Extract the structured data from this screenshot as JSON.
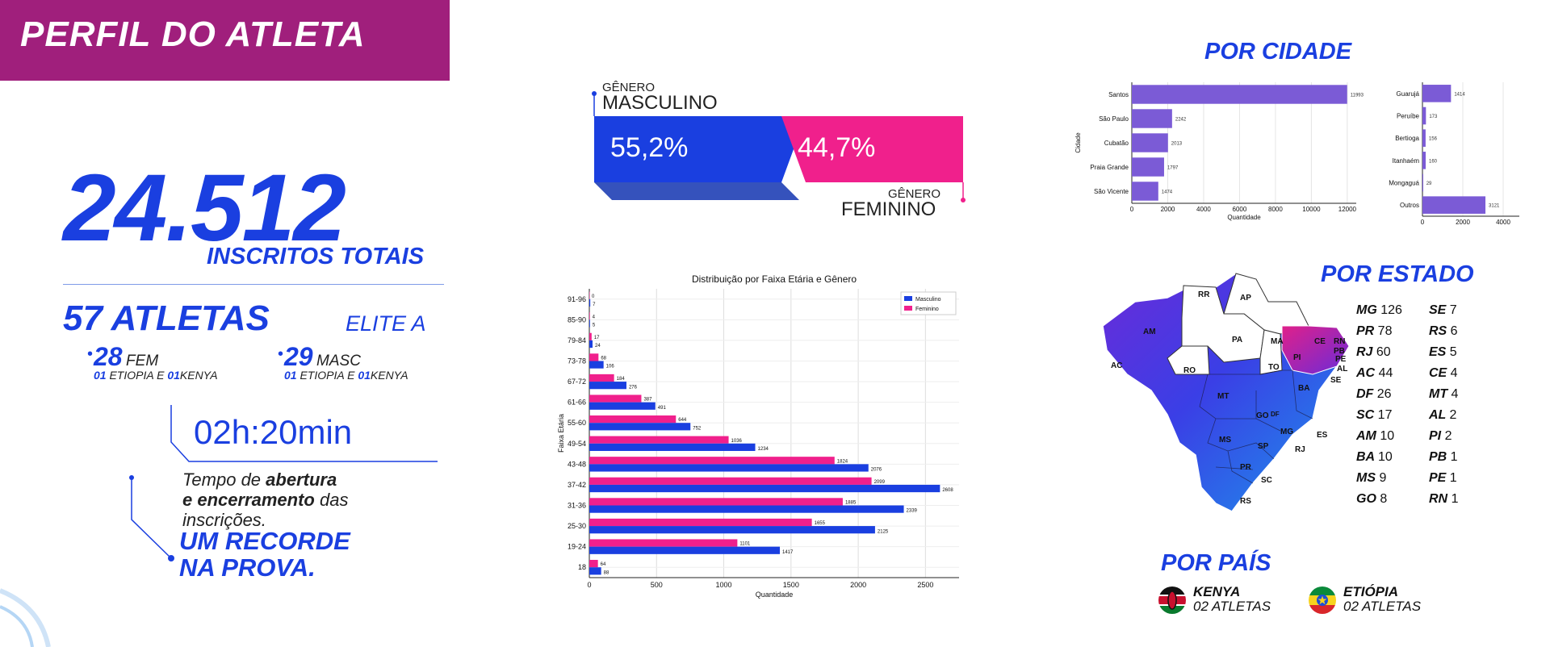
{
  "title": "PERFIL DO ATLETA",
  "totals": {
    "number": "24.512",
    "label": "INSCRITOS TOTAIS",
    "elite_number": "57 ATLETAS",
    "elite_label": "ELITE A",
    "fem_count": "28",
    "fem_label": "FEM",
    "masc_count": "29",
    "masc_label": "MASC",
    "fem_sub1": "01",
    "fem_sub2": "ETIOPIA E",
    "fem_sub3": "01",
    "fem_sub4": "KENYA",
    "masc_sub1": "01",
    "masc_sub2": "ETIOPIA E",
    "masc_sub3": "01",
    "masc_sub4": "KENYA"
  },
  "time": {
    "value": "02h:20min",
    "desc_1": "Tempo de ",
    "desc_2": "abertura",
    "desc_3": "e encerramento",
    "desc_4": " das",
    "desc_5": "inscrições.",
    "record_1": "UM RECORDE",
    "record_2": "NA PROVA."
  },
  "gender": {
    "masc_small": "GÊNERO",
    "masc_big": "MASCULINO",
    "fem_small": "GÊNERO",
    "fem_big": "FEMININO",
    "masc_pct": "55,2%",
    "fem_pct": "44,7%",
    "masc_color": "#1a3fe0",
    "fem_color": "#f0208c"
  },
  "chart_data": [
    {
      "type": "bar",
      "orientation": "horizontal",
      "title": "Distribuição por Faixa Etária e Gênero",
      "xlabel": "Quantidade",
      "ylabel": "Faixa Etária",
      "xlim": [
        0,
        2750
      ],
      "xticks": [
        0,
        500,
        1000,
        1500,
        2000,
        2500
      ],
      "grid": true,
      "legend": "top-right",
      "categories": [
        "18",
        "19-24",
        "25-30",
        "31-36",
        "37-42",
        "43-48",
        "49-54",
        "55-60",
        "61-66",
        "67-72",
        "73-78",
        "79-84",
        "85-90",
        "91-96"
      ],
      "series": [
        {
          "name": "Masculino",
          "color": "#1a3fe0",
          "values": [
            88,
            1417,
            2125,
            2339,
            2608,
            2076,
            1234,
            752,
            491,
            276,
            106,
            24,
            5,
            7
          ]
        },
        {
          "name": "Feminino",
          "color": "#f0208c",
          "values": [
            64,
            1101,
            1655,
            1885,
            2099,
            1824,
            1036,
            644,
            387,
            184,
            68,
            17,
            4,
            0
          ]
        }
      ]
    },
    {
      "type": "bar",
      "orientation": "horizontal",
      "title": "",
      "xlabel": "Quantidade",
      "ylabel": "Cidade",
      "xlim": [
        0,
        12500
      ],
      "xticks": [
        0,
        2000,
        4000,
        6000,
        8000,
        10000,
        12000
      ],
      "color": "#7b5bd6",
      "categories": [
        "Santos",
        "São Paulo",
        "Cubatão",
        "Praia Grande",
        "São Vicente"
      ],
      "values": [
        11993,
        2242,
        2013,
        1797,
        1474
      ]
    },
    {
      "type": "bar",
      "orientation": "horizontal",
      "title": "",
      "xlabel": "",
      "ylabel": "",
      "xlim": [
        0,
        4800
      ],
      "xticks": [
        0,
        2000,
        4000
      ],
      "color": "#7b5bd6",
      "categories": [
        "Guarujá",
        "Peruíbe",
        "Bertioga",
        "Itanhaém",
        "Mongaguá",
        "Outros"
      ],
      "values": [
        1414,
        173,
        156,
        160,
        29,
        3121
      ]
    }
  ],
  "sections": {
    "city_title": "POR CIDADE",
    "state_title": "POR ESTADO",
    "country_title": "POR PAÍS"
  },
  "states_left": [
    {
      "code": "MG",
      "value": "126"
    },
    {
      "code": "PR",
      "value": "78"
    },
    {
      "code": "RJ",
      "value": "60"
    },
    {
      "code": "AC",
      "value": "44"
    },
    {
      "code": "DF",
      "value": "26"
    },
    {
      "code": "SC",
      "value": "17"
    },
    {
      "code": "AM",
      "value": "10"
    },
    {
      "code": "BA",
      "value": "10"
    },
    {
      "code": "MS",
      "value": "9"
    },
    {
      "code": "GO",
      "value": "8"
    }
  ],
  "states_right": [
    {
      "code": "SE",
      "value": "7"
    },
    {
      "code": "RS",
      "value": "6"
    },
    {
      "code": "ES",
      "value": "5"
    },
    {
      "code": "CE",
      "value": "4"
    },
    {
      "code": "MT",
      "value": "4"
    },
    {
      "code": "AL",
      "value": "2"
    },
    {
      "code": "PI",
      "value": "2"
    },
    {
      "code": "PB",
      "value": "1"
    },
    {
      "code": "PE",
      "value": "1"
    },
    {
      "code": "RN",
      "value": "1"
    }
  ],
  "map_labels": [
    "RR",
    "AP",
    "AM",
    "PA",
    "MA",
    "CE",
    "RN",
    "PB",
    "PE",
    "PI",
    "AL",
    "SE",
    "AC",
    "RO",
    "TO",
    "BA",
    "MT",
    "GO",
    "DF",
    "MG",
    "ES",
    "MS",
    "SP",
    "RJ",
    "PR",
    "SC",
    "RS"
  ],
  "countries": [
    {
      "name": "KENYA",
      "sub": "02 ATLETAS",
      "flag": "kenya-flag-icon"
    },
    {
      "name": "ETIÓPIA",
      "sub": "02 ATLETAS",
      "flag": "ethiopia-flag-icon"
    }
  ]
}
